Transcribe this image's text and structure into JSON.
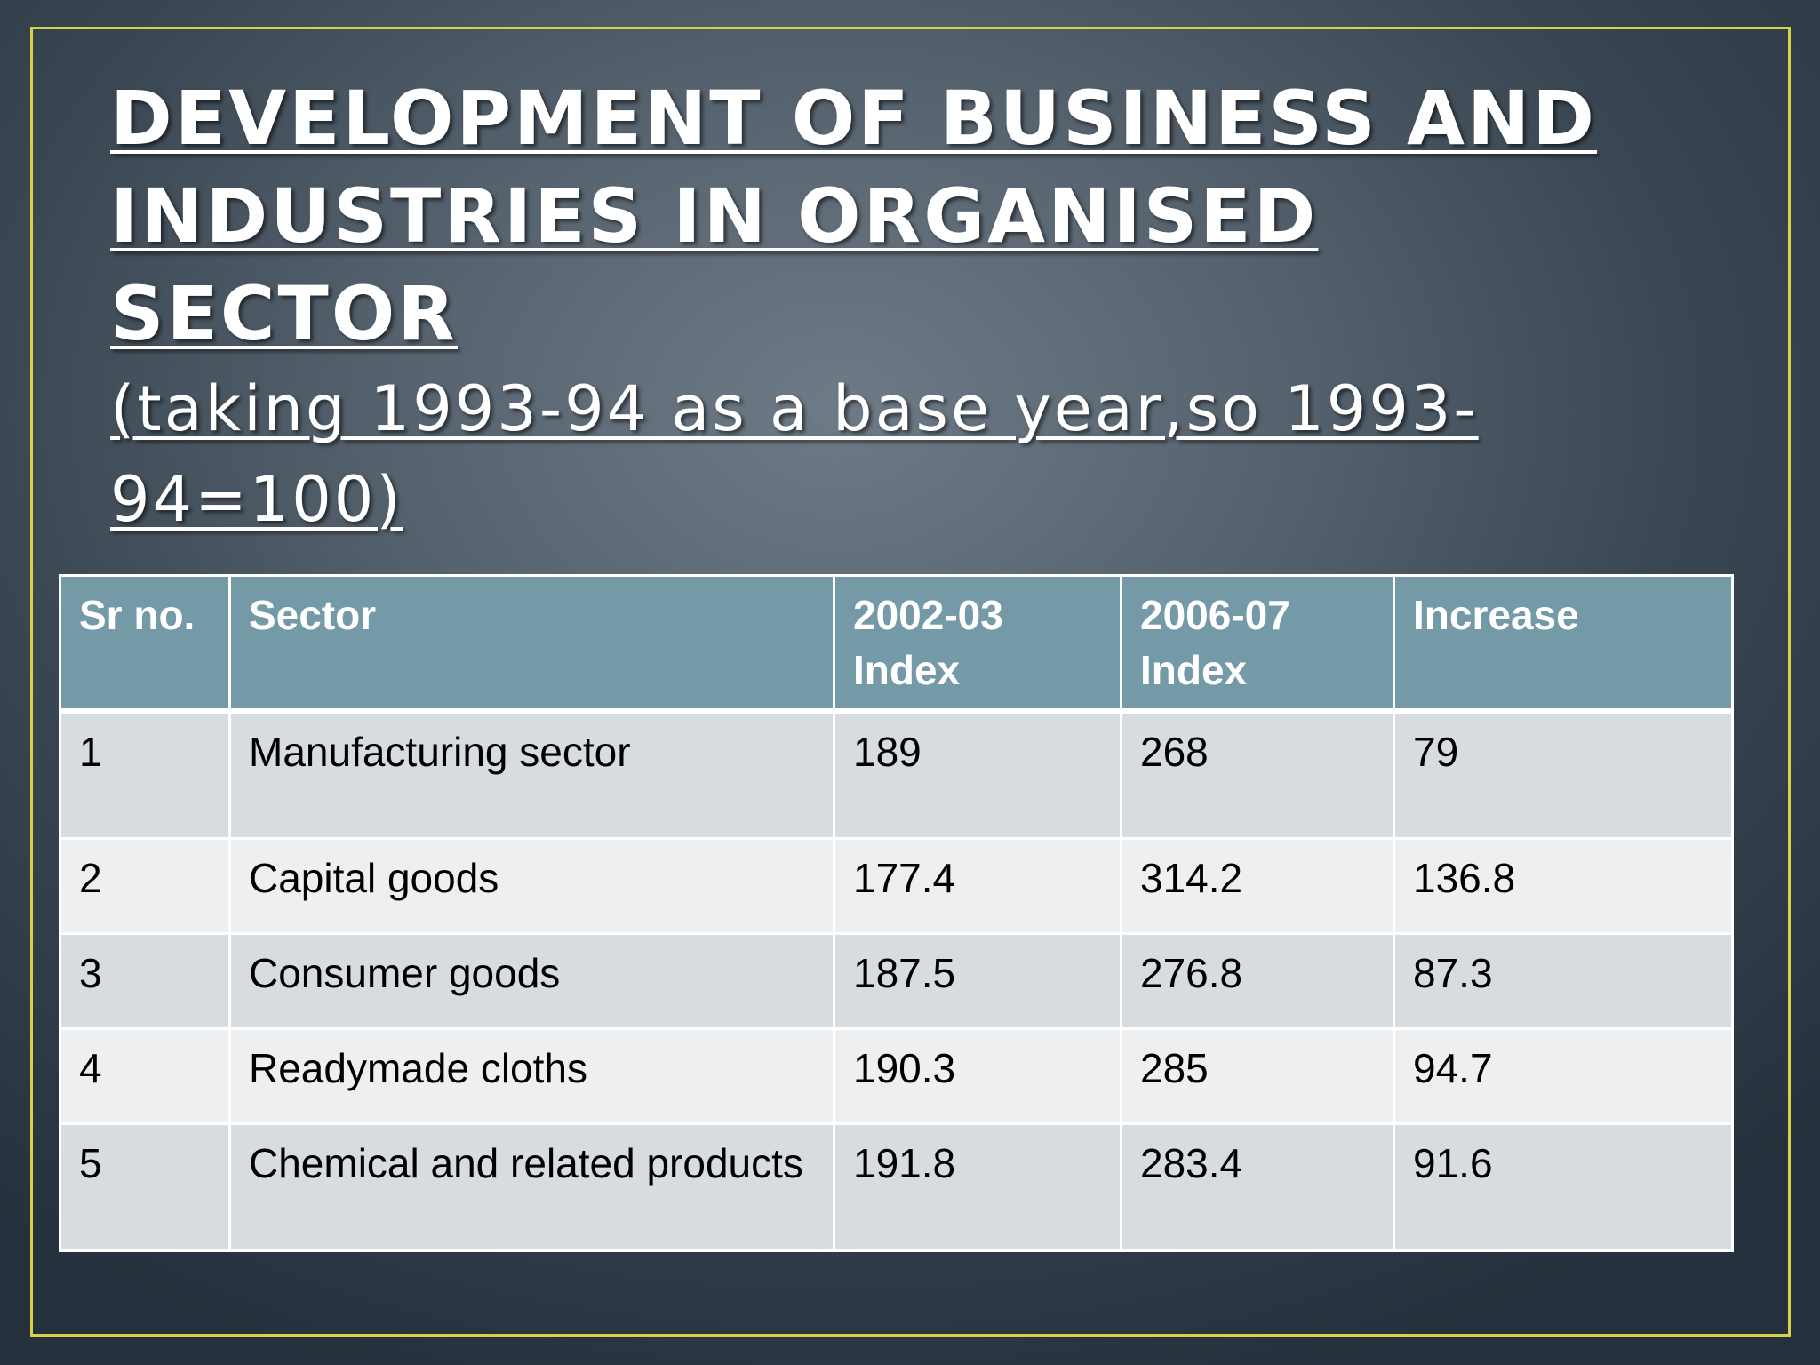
{
  "title": {
    "line1": "DEVELOPMENT OF BUSINESS AND",
    "line2": "INDUSTRIES IN ORGANISED SECTOR",
    "subtitle_line1": "(taking 1993-94 as a base year,so 1993-",
    "subtitle_line2": "94=100)"
  },
  "table": {
    "headers": [
      "Sr no.",
      "Sector",
      "2002-03 Index",
      "2006-07 Index",
      "Increase"
    ],
    "rows": [
      [
        "1",
        "Manufacturing sector",
        "189",
        "268",
        "79"
      ],
      [
        "2",
        "Capital goods",
        "177.4",
        "314.2",
        "136.8"
      ],
      [
        "3",
        "Consumer goods",
        "187.5",
        "276.8",
        "87.3"
      ],
      [
        "4",
        "Readymade cloths",
        "190.3",
        "285",
        "94.7"
      ],
      [
        "5",
        "Chemical and related products",
        "191.8",
        "283.4",
        "91.6"
      ]
    ]
  },
  "colors": {
    "frame_border": "#d9d04a",
    "header_fill": "#749aa7",
    "row_fill_odd": "#d6dcdf",
    "row_fill_even": "#edeff0"
  }
}
